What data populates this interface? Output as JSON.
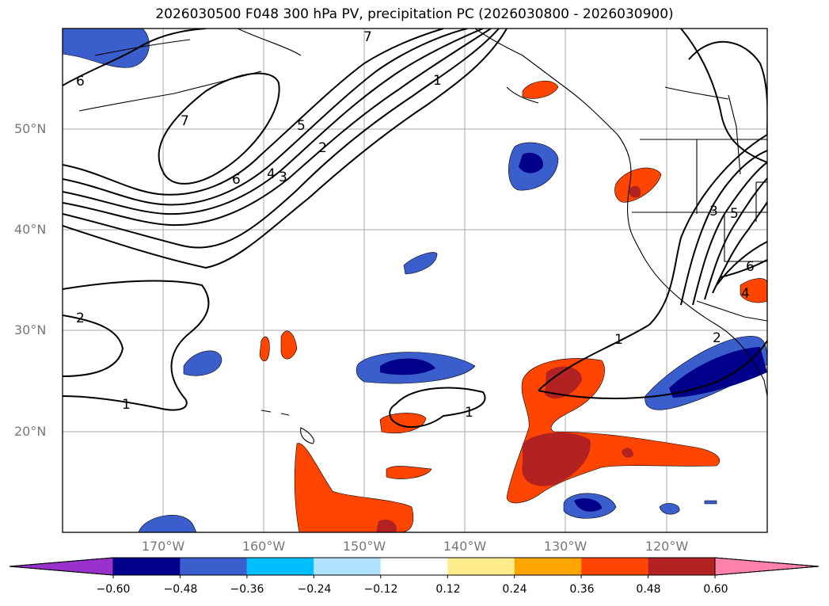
{
  "title": "2026030500 F048 300 hPa PV, precipitation PC (2026030800 - 2026030900)",
  "lat_labels": [
    "50°N",
    "40°N",
    "30°N",
    "20°N"
  ],
  "lon_labels": [
    "170°W",
    "160°W",
    "150°W",
    "140°W",
    "130°W",
    "120°W"
  ],
  "colorbar": {
    "ticks": [
      "−0.60",
      "−0.48",
      "−0.36",
      "−0.24",
      "−0.12",
      "0.12",
      "0.24",
      "0.36",
      "0.48",
      "0.60"
    ],
    "colors": [
      "#9932cc",
      "#00008b",
      "#3a5fcd",
      "#00bfff",
      "#b0e2ff",
      "#ffffff",
      "#ffec8b",
      "#ffa500",
      "#ff4500",
      "#b22222",
      "#ff82ab"
    ]
  },
  "pv_contour_labels": [
    "6",
    "7",
    "1",
    "7",
    "5",
    "2",
    "6",
    "4",
    "3",
    "2",
    "1",
    "1",
    "1",
    "3",
    "5",
    "6",
    "4",
    "2"
  ],
  "map": {
    "extent_lon": [
      -180,
      -110
    ],
    "extent_lat": [
      10,
      60
    ],
    "gridlines": true,
    "contour_field": "300 hPa PV",
    "shaded_field": "precipitation PC"
  }
}
